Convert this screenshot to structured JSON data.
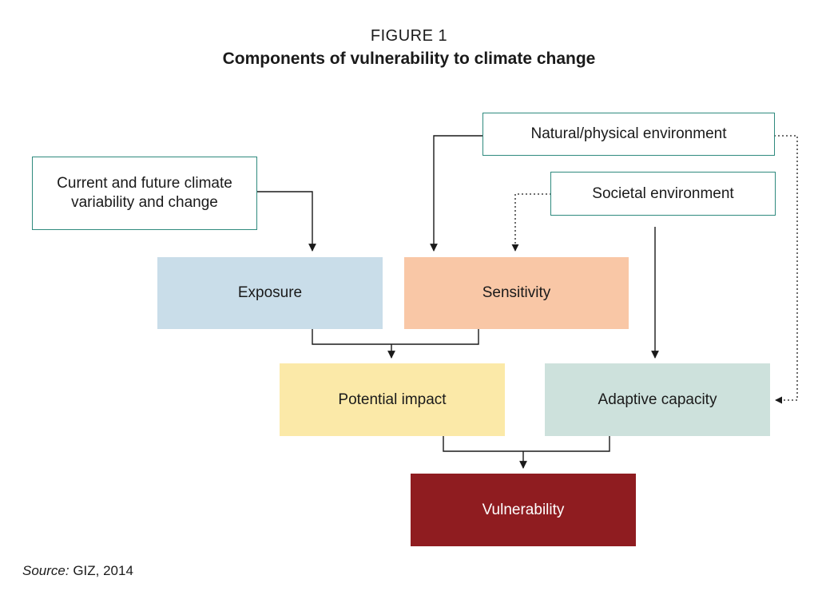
{
  "figure": {
    "label": "FIGURE 1",
    "title": "Components of vulnerability to climate change"
  },
  "nodes": {
    "climate": "Current and future climate variability and change",
    "natural_env": "Natural/physical environment",
    "societal_env": "Societal environment",
    "exposure": "Exposure",
    "sensitivity": "Sensitivity",
    "potential_impact": "Potential impact",
    "adaptive_capacity": "Adaptive capacity",
    "vulnerability": "Vulnerability"
  },
  "colors": {
    "outline_border": "#2f8a7e",
    "exposure": "#c9dde9",
    "sensitivity": "#f9c7a6",
    "potential_impact": "#fbe9a8",
    "adaptive_capacity": "#cde1dc",
    "vulnerability": "#8f1c20"
  },
  "source": {
    "label": "Source:",
    "text": " GIZ, 2014"
  }
}
